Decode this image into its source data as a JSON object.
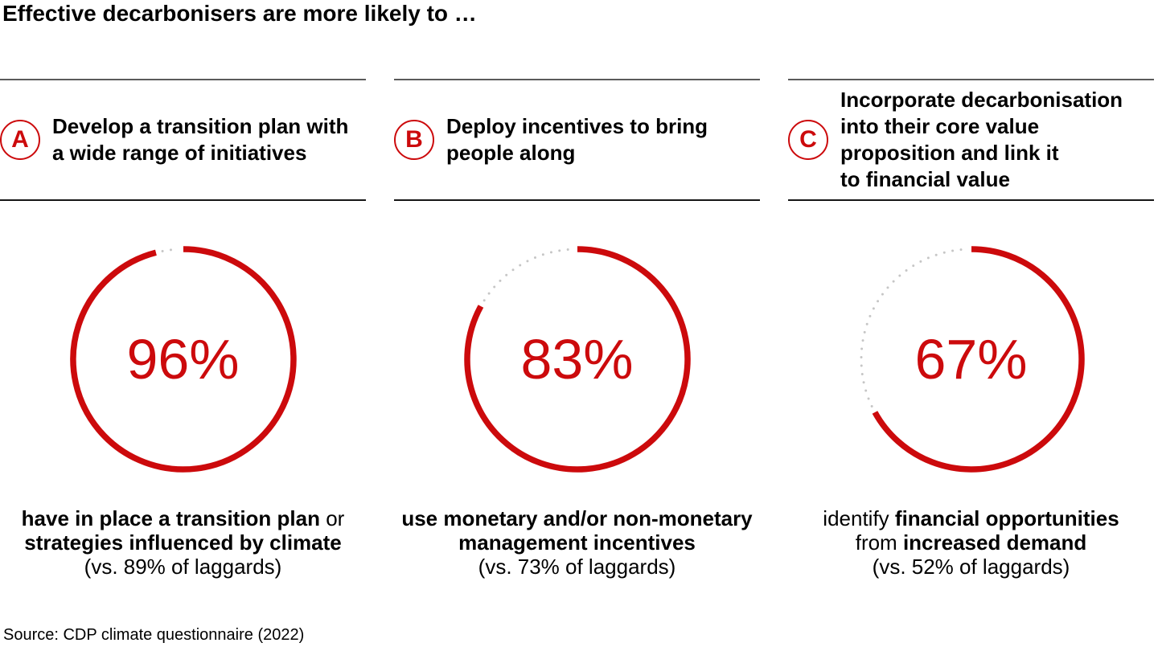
{
  "title": "Effective decarbonisers are more likely to …",
  "source": "Source: CDP climate questionnaire (2022)",
  "colors": {
    "accent_red": "#cc0a0c",
    "remainder_dot_gray": "#c6c6c6",
    "rule_top_gray": "#5a5a5a",
    "rule_bottom_black": "#161616"
  },
  "chart_data": {
    "type": "donut",
    "title": "Effective decarbonisers are more likely to …",
    "ring_color": "#cc0a0c",
    "remainder_color": "#c6c6c6",
    "remainder_style": "dotted",
    "start_angle": "12 o'clock, clockwise",
    "charts": [
      {
        "badge": "A",
        "heading": "Develop a transition plan with\na wide range of initiatives",
        "value_pct": 96,
        "value_label": "96%",
        "laggards_pct": 89,
        "laggards_label": "(vs. 89% of laggards)",
        "caption_segments": [
          {
            "t": "have in place a transition plan",
            "b": true
          },
          {
            "t": " or",
            "b": false
          },
          {
            "br": true
          },
          {
            "t": "strategies influenced by climate",
            "b": true
          },
          {
            "br": true
          },
          {
            "t": "(vs. 89% of laggards)",
            "b": false
          }
        ]
      },
      {
        "badge": "B",
        "heading": "Deploy incentives to bring\npeople along",
        "value_pct": 83,
        "value_label": "83%",
        "laggards_pct": 73,
        "laggards_label": "(vs. 73% of laggards)",
        "caption_segments": [
          {
            "t": "use monetary and/or non-monetary",
            "b": true
          },
          {
            "br": true
          },
          {
            "t": "management incentives",
            "b": true
          },
          {
            "br": true
          },
          {
            "t": "(vs. 73% of laggards)",
            "b": false
          }
        ]
      },
      {
        "badge": "C",
        "heading": "Incorporate decarbonisation\ninto their core value\nproposition and link it\nto financial value",
        "value_pct": 67,
        "value_label": "67%",
        "laggards_pct": 52,
        "laggards_label": "(vs. 52% of laggards)",
        "caption_segments": [
          {
            "t": "identify ",
            "b": false
          },
          {
            "t": "financial opportunities",
            "b": true
          },
          {
            "br": true
          },
          {
            "t": "from ",
            "b": false
          },
          {
            "t": "increased demand",
            "b": true
          },
          {
            "br": true
          },
          {
            "t": "(vs. 52% of laggards)",
            "b": false
          }
        ]
      }
    ]
  }
}
